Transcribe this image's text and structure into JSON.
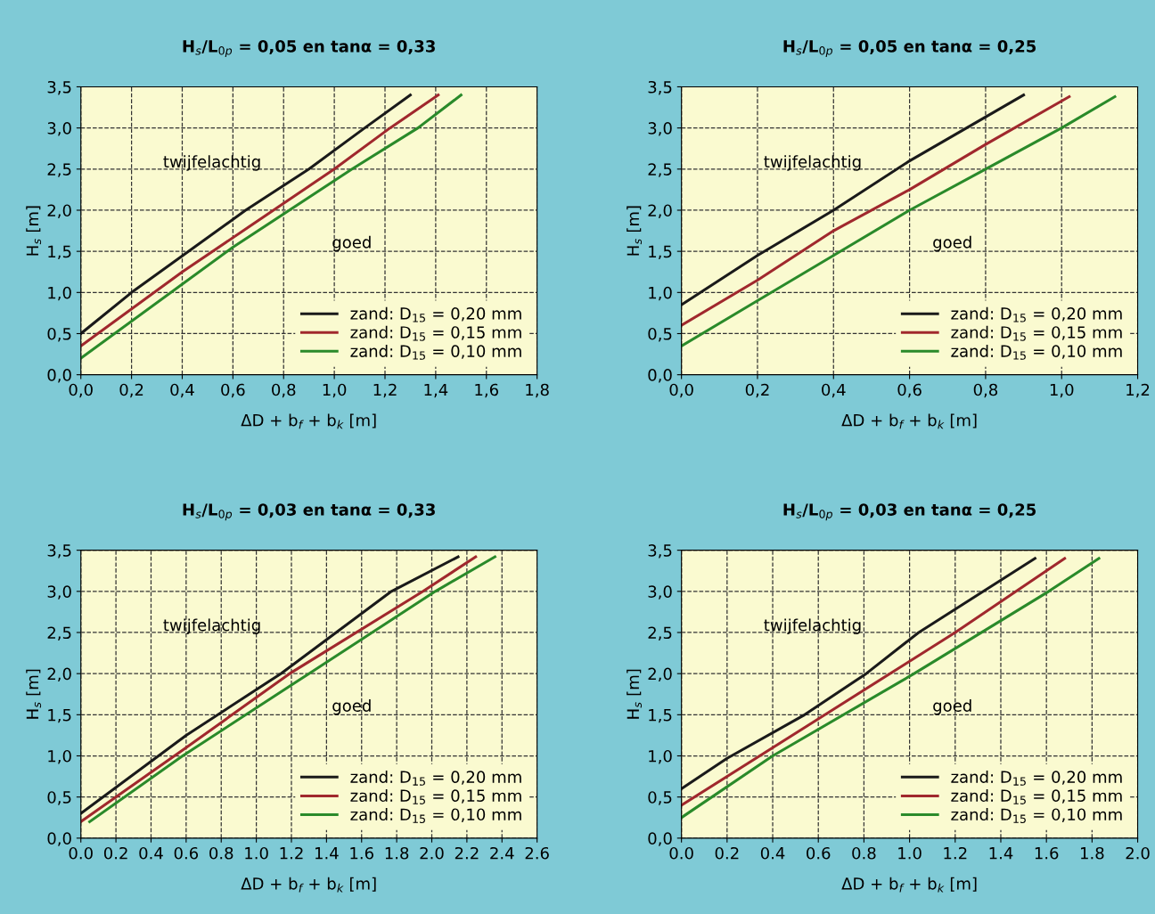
{
  "chart_data": [
    {
      "type": "line",
      "title": "H$_{s}$/L$_{0p}$ = 0,05 en tanα = 0,33",
      "xlabel": "ΔD + b$_{f}$ + b$_{k}$ [m]",
      "ylabel": "H$_{s}$ [m]",
      "annotations": [
        "twijfelachtig",
        "goed"
      ],
      "xlim": [
        0,
        1.8
      ],
      "ylim": [
        0,
        3.5
      ],
      "xticks": [
        {
          "value": 0,
          "label": "0,0"
        },
        {
          "value": 0.2,
          "label": "0,2"
        },
        {
          "value": 0.4,
          "label": "0,4"
        },
        {
          "value": 0.6,
          "label": "0,6"
        },
        {
          "value": 0.8,
          "label": "0,8"
        },
        {
          "value": 1.0,
          "label": "1,0"
        },
        {
          "value": 1.2,
          "label": "1,2"
        },
        {
          "value": 1.4,
          "label": "1,4"
        },
        {
          "value": 1.6,
          "label": "1,6"
        },
        {
          "value": 1.8,
          "label": "1,8"
        }
      ],
      "yticks": [
        {
          "value": 0,
          "label": "0,0"
        },
        {
          "value": 0.5,
          "label": "0,5"
        },
        {
          "value": 1.0,
          "label": "1,0"
        },
        {
          "value": 1.5,
          "label": "1,5"
        },
        {
          "value": 2.0,
          "label": "2,0"
        },
        {
          "value": 2.5,
          "label": "2,5"
        },
        {
          "value": 3.0,
          "label": "3,0"
        },
        {
          "value": 3.5,
          "label": "3,5"
        }
      ],
      "grid": true,
      "legend": "lower right",
      "marker": "none",
      "line_style": "solid",
      "series": [
        {
          "name": "zand: D$_{15}$ = 0,20 mm",
          "color": "#1a1a1a",
          "x": [
            0,
            0.2,
            0.65,
            0.9,
            1.12,
            1.3
          ],
          "values": [
            0.5,
            1.0,
            2.0,
            2.5,
            3.0,
            3.4
          ]
        },
        {
          "name": "zand: D$_{15}$ = 0,15 mm",
          "color": "#a0282d",
          "x": [
            0,
            0.4,
            1.0,
            1.22,
            1.41
          ],
          "values": [
            0.35,
            1.25,
            2.5,
            3.0,
            3.4
          ]
        },
        {
          "name": "zand: D$_{15}$ = 0,10 mm",
          "color": "#2a8a2a",
          "x": [
            0,
            0.6,
            1.07,
            1.33,
            1.5
          ],
          "values": [
            0.2,
            1.55,
            2.5,
            3.0,
            3.4
          ]
        }
      ]
    },
    {
      "type": "line",
      "title": "H$_{s}$/L$_{0p}$ = 0,05 en tanα = 0,25",
      "xlabel": "ΔD + b$_{f}$ + b$_{k}$ [m]",
      "ylabel": "H$_{s}$ [m]",
      "annotations": [
        "twijfelachtig",
        "goed"
      ],
      "xlim": [
        0,
        1.2
      ],
      "ylim": [
        0,
        3.5
      ],
      "xticks": [
        {
          "value": 0,
          "label": "0,0"
        },
        {
          "value": 0.2,
          "label": "0,2"
        },
        {
          "value": 0.4,
          "label": "0,4"
        },
        {
          "value": 0.6,
          "label": "0,6"
        },
        {
          "value": 0.8,
          "label": "0,8"
        },
        {
          "value": 1.0,
          "label": "1,0"
        },
        {
          "value": 1.2,
          "label": "1,2"
        }
      ],
      "yticks": [
        {
          "value": 0,
          "label": "0,0"
        },
        {
          "value": 0.5,
          "label": "0,5"
        },
        {
          "value": 1.0,
          "label": "1,0"
        },
        {
          "value": 1.5,
          "label": "1,5"
        },
        {
          "value": 2.0,
          "label": "2,0"
        },
        {
          "value": 2.5,
          "label": "2,5"
        },
        {
          "value": 3.0,
          "label": "3,0"
        },
        {
          "value": 3.5,
          "label": "3,5"
        }
      ],
      "grid": true,
      "legend": "lower right",
      "marker": "none",
      "line_style": "solid",
      "series": [
        {
          "name": "zand: D$_{15}$ = 0,20 mm",
          "color": "#1a1a1a",
          "x": [
            0,
            0.2,
            0.4,
            0.6,
            0.9
          ],
          "values": [
            0.85,
            1.45,
            2.0,
            2.6,
            3.4
          ]
        },
        {
          "name": "zand: D$_{15}$ = 0,15 mm",
          "color": "#a0282d",
          "x": [
            0,
            0.2,
            0.4,
            0.6,
            0.8,
            1.02
          ],
          "values": [
            0.6,
            1.15,
            1.75,
            2.25,
            2.8,
            3.38
          ]
        },
        {
          "name": "zand: D$_{15}$ = 0,10 mm",
          "color": "#2a8a2a",
          "x": [
            0,
            0.2,
            0.4,
            0.6,
            0.8,
            1.0,
            1.14
          ],
          "values": [
            0.35,
            0.9,
            1.45,
            2.0,
            2.5,
            3.0,
            3.38
          ]
        }
      ]
    },
    {
      "type": "line",
      "title": "H$_{s}$/L$_{0p}$ = 0,03 en tanα = 0,33",
      "xlabel": "ΔD + b$_{f}$ + b$_{k}$ [m]",
      "ylabel": "H$_{s}$ [m]",
      "annotations": [
        "twijfelachtig",
        "goed"
      ],
      "xlim": [
        0,
        2.6
      ],
      "ylim": [
        0,
        3.5
      ],
      "xticks": [
        {
          "value": 0,
          "label": "0.0"
        },
        {
          "value": 0.2,
          "label": "0.2"
        },
        {
          "value": 0.4,
          "label": "0.4"
        },
        {
          "value": 0.6,
          "label": "0.6"
        },
        {
          "value": 0.8,
          "label": "0.8"
        },
        {
          "value": 1.0,
          "label": "1.0"
        },
        {
          "value": 1.2,
          "label": "1.2"
        },
        {
          "value": 1.4,
          "label": "1.4"
        },
        {
          "value": 1.6,
          "label": "1.6"
        },
        {
          "value": 1.8,
          "label": "1.8"
        },
        {
          "value": 2.0,
          "label": "2.0"
        },
        {
          "value": 2.2,
          "label": "2.2"
        },
        {
          "value": 2.4,
          "label": "2.4"
        },
        {
          "value": 2.6,
          "label": "2.6"
        }
      ],
      "yticks": [
        {
          "value": 0,
          "label": "0,0"
        },
        {
          "value": 0.5,
          "label": "0,5"
        },
        {
          "value": 1.0,
          "label": "1,0"
        },
        {
          "value": 1.5,
          "label": "1,5"
        },
        {
          "value": 2.0,
          "label": "2,0"
        },
        {
          "value": 2.5,
          "label": "2,5"
        },
        {
          "value": 3.0,
          "label": "3,0"
        },
        {
          "value": 3.5,
          "label": "3,5"
        }
      ],
      "grid": true,
      "legend": "lower right",
      "marker": "none",
      "line_style": "solid",
      "series": [
        {
          "name": "zand: D$_{15}$ = 0,20 mm",
          "color": "#1a1a1a",
          "x": [
            0,
            0.6,
            1.14,
            1.77,
            2.15
          ],
          "values": [
            0.3,
            1.25,
            2.0,
            3.0,
            3.42
          ]
        },
        {
          "name": "zand: D$_{15}$ = 0,15 mm",
          "color": "#a0282d",
          "x": [
            0,
            0.6,
            1.19,
            1.95,
            2.25
          ],
          "values": [
            0.2,
            1.1,
            2.0,
            3.0,
            3.42
          ]
        },
        {
          "name": "zand: D$_{15}$ = 0,10 mm",
          "color": "#2a8a2a",
          "x": [
            0.05,
            0.58,
            1.3,
            2.02,
            2.36
          ],
          "values": [
            0.2,
            1.0,
            2.0,
            3.0,
            3.42
          ]
        }
      ]
    },
    {
      "type": "line",
      "title": "H$_{s}$/L$_{0p}$ = 0,03 en tanα = 0,25",
      "xlabel": "ΔD + b$_{f}$ + b$_{k}$ [m]",
      "ylabel": "H$_{s}$ [m]",
      "annotations": [
        "twijfelachtig",
        "goed"
      ],
      "xlim": [
        0,
        2.0
      ],
      "ylim": [
        0,
        3.5
      ],
      "xticks": [
        {
          "value": 0,
          "label": "0.0"
        },
        {
          "value": 0.2,
          "label": "0.2"
        },
        {
          "value": 0.4,
          "label": "0.4"
        },
        {
          "value": 0.6,
          "label": "0.6"
        },
        {
          "value": 0.8,
          "label": "0.8"
        },
        {
          "value": 1.0,
          "label": "1.0"
        },
        {
          "value": 1.2,
          "label": "1.2"
        },
        {
          "value": 1.4,
          "label": "1.4"
        },
        {
          "value": 1.6,
          "label": "1.6"
        },
        {
          "value": 1.8,
          "label": "1.8"
        },
        {
          "value": 2.0,
          "label": "2.0"
        }
      ],
      "yticks": [
        {
          "value": 0,
          "label": "0,0"
        },
        {
          "value": 0.5,
          "label": "0,5"
        },
        {
          "value": 1.0,
          "label": "1,0"
        },
        {
          "value": 1.5,
          "label": "1,5"
        },
        {
          "value": 2.0,
          "label": "2,0"
        },
        {
          "value": 2.5,
          "label": "2,5"
        },
        {
          "value": 3.0,
          "label": "3,0"
        },
        {
          "value": 3.5,
          "label": "3,5"
        }
      ],
      "grid": true,
      "legend": "lower right",
      "marker": "none",
      "line_style": "solid",
      "series": [
        {
          "name": "zand: D$_{15}$ = 0,20 mm",
          "color": "#1a1a1a",
          "x": [
            0,
            0.2,
            0.54,
            0.81,
            1.04,
            1.55
          ],
          "values": [
            0.6,
            0.97,
            1.5,
            2.0,
            2.5,
            3.4
          ]
        },
        {
          "name": "zand: D$_{15}$ = 0,15 mm",
          "color": "#a0282d",
          "x": [
            0,
            0.6,
            1.2,
            1.68
          ],
          "values": [
            0.4,
            1.45,
            2.5,
            3.4
          ]
        },
        {
          "name": "zand: D$_{15}$ = 0,10 mm",
          "color": "#2a8a2a",
          "x": [
            0,
            0.4,
            1.02,
            1.61,
            1.83
          ],
          "values": [
            0.25,
            1.0,
            2.0,
            3.0,
            3.4
          ]
        }
      ]
    }
  ]
}
